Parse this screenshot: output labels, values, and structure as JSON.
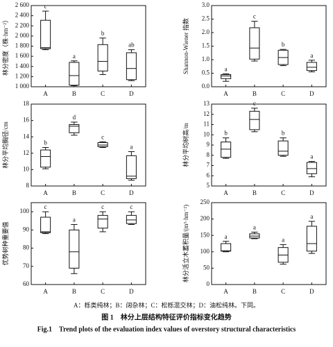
{
  "chart_data": [
    {
      "type": "box",
      "ylabel": "林分密度（株·hm⁻²）",
      "categories": [
        "A",
        "B",
        "C",
        "D"
      ],
      "ylim": [
        1000,
        2600
      ],
      "yticks": [
        {
          "value": 1000,
          "label": "1 000"
        },
        {
          "value": 1200,
          "label": "1 200"
        },
        {
          "value": 1400,
          "label": "1 400"
        },
        {
          "value": 1600,
          "label": "1 600"
        },
        {
          "value": 1800,
          "label": "1 800"
        },
        {
          "value": 2000,
          "label": "2 000"
        },
        {
          "value": 2200,
          "label": "2 200"
        },
        {
          "value": 2400,
          "label": "2 400"
        },
        {
          "value": 2600,
          "label": "2 600"
        }
      ],
      "boxes": [
        {
          "min": 1730,
          "q1": 1750,
          "median": 1770,
          "q3": 2310,
          "max": 2490
        },
        {
          "min": 1020,
          "q1": 1030,
          "median": 1220,
          "q3": 1480,
          "max": 1510
        },
        {
          "min": 1240,
          "q1": 1310,
          "median": 1500,
          "q3": 1830,
          "max": 1960
        },
        {
          "min": 1120,
          "q1": 1140,
          "median": 1360,
          "q3": 1670,
          "max": 1730
        }
      ],
      "letters": [
        "c",
        "a",
        "b",
        "ab"
      ]
    },
    {
      "type": "box",
      "ylabel": "Shannon-Wiener 指数",
      "categories": [
        "A",
        "B",
        "C",
        "D"
      ],
      "ylim": [
        0,
        3
      ],
      "yticks": [
        {
          "value": 0,
          "label": "0.0"
        },
        0.5,
        {
          "value": 1,
          "label": "1.0"
        },
        1.5,
        {
          "value": 2,
          "label": "2.0"
        },
        2.5,
        {
          "value": 3,
          "label": "3.0"
        }
      ],
      "boxes": [
        {
          "min": 0.2,
          "q1": 0.3,
          "median": 0.4,
          "q3": 0.45,
          "max": 0.48
        },
        {
          "min": 0.95,
          "q1": 1.02,
          "median": 1.43,
          "q3": 2.18,
          "max": 2.42
        },
        {
          "min": 0.78,
          "q1": 0.82,
          "median": 1.08,
          "q3": 1.35,
          "max": 1.38
        },
        {
          "min": 0.55,
          "q1": 0.6,
          "median": 0.72,
          "q3": 0.9,
          "max": 0.98
        }
      ],
      "letters": [
        "a",
        "c",
        "b",
        "a"
      ]
    },
    {
      "type": "box",
      "ylabel": "林分平均胸径/cm",
      "categories": [
        "A",
        "B",
        "C",
        "D"
      ],
      "ylim": [
        8,
        18
      ],
      "yticks": [
        8,
        10,
        12,
        14,
        16,
        18
      ],
      "boxes": [
        {
          "min": 10.1,
          "q1": 10.3,
          "median": 11.6,
          "q3": 12.4,
          "max": 12.7
        },
        {
          "min": 14.2,
          "q1": 14.5,
          "median": 15.3,
          "q3": 15.5,
          "max": 15.8
        },
        {
          "min": 12.7,
          "q1": 12.8,
          "median": 13.0,
          "q3": 13.3,
          "max": 13.4
        },
        {
          "min": 8.7,
          "q1": 8.9,
          "median": 9.2,
          "q3": 11.7,
          "max": 12.2
        }
      ],
      "letters": [
        "b",
        "d",
        "c",
        "a"
      ]
    },
    {
      "type": "box",
      "ylabel": "林分平均树高/m",
      "categories": [
        "A",
        "B",
        "C",
        "D"
      ],
      "ylim": [
        5,
        13
      ],
      "yticks": [
        5,
        6,
        7,
        8,
        9,
        10,
        11,
        12,
        13
      ],
      "boxes": [
        {
          "min": 7.7,
          "q1": 7.8,
          "median": 8.6,
          "q3": 9.3,
          "max": 9.7
        },
        {
          "min": 10.3,
          "q1": 10.5,
          "median": 11.5,
          "q3": 12.3,
          "max": 12.6
        },
        {
          "min": 7.9,
          "q1": 8.0,
          "median": 8.4,
          "q3": 9.4,
          "max": 9.7
        },
        {
          "min": 5.9,
          "q1": 6.2,
          "median": 6.7,
          "q3": 7.3,
          "max": 7.4
        }
      ],
      "letters": [
        "b",
        "c",
        "b",
        "a"
      ]
    },
    {
      "type": "box",
      "ylabel": "优势树种重要值",
      "categories": [
        "A",
        "B",
        "C",
        "D"
      ],
      "ylim": [
        60,
        105
      ],
      "yticks": [
        60,
        70,
        80,
        90,
        100
      ],
      "boxes": [
        {
          "min": 88,
          "q1": 88.5,
          "median": 89,
          "q3": 97,
          "max": 100
        },
        {
          "min": 66,
          "q1": 69,
          "median": 78,
          "q3": 90,
          "max": 93
        },
        {
          "min": 89,
          "q1": 91,
          "median": 96,
          "q3": 98,
          "max": 100
        },
        {
          "min": 93,
          "q1": 93.5,
          "median": 95.5,
          "q3": 98,
          "max": 100
        }
      ],
      "letters": [
        "c",
        "a",
        "c",
        "c"
      ]
    },
    {
      "type": "box",
      "ylabel": "林分活立木蓄积量/(m³·hm⁻²)",
      "categories": [
        "A",
        "B",
        "C",
        "D"
      ],
      "ylim": [
        0,
        250
      ],
      "yticks": [
        0,
        50,
        100,
        150,
        200,
        250
      ],
      "boxes": [
        {
          "min": 100,
          "q1": 102,
          "median": 103,
          "q3": 125,
          "max": 132
        },
        {
          "min": 140,
          "q1": 142,
          "median": 148,
          "q3": 155,
          "max": 160
        },
        {
          "min": 62,
          "q1": 68,
          "median": 90,
          "q3": 113,
          "max": 122
        },
        {
          "min": 95,
          "q1": 102,
          "median": 125,
          "q3": 178,
          "max": 193
        }
      ],
      "letters": [
        "a",
        "a",
        "a",
        "a"
      ]
    }
  ],
  "caption": {
    "note": "A：栎类纯林；B：阔杂林；C：松栎混交林；D：油松纯林。下同。",
    "title_cn": "图 1　林分上层结构特征评价指标变化趋势",
    "title_en": "Fig.1　Trend plots of the evaluation index values of overstory structural characteristics"
  }
}
